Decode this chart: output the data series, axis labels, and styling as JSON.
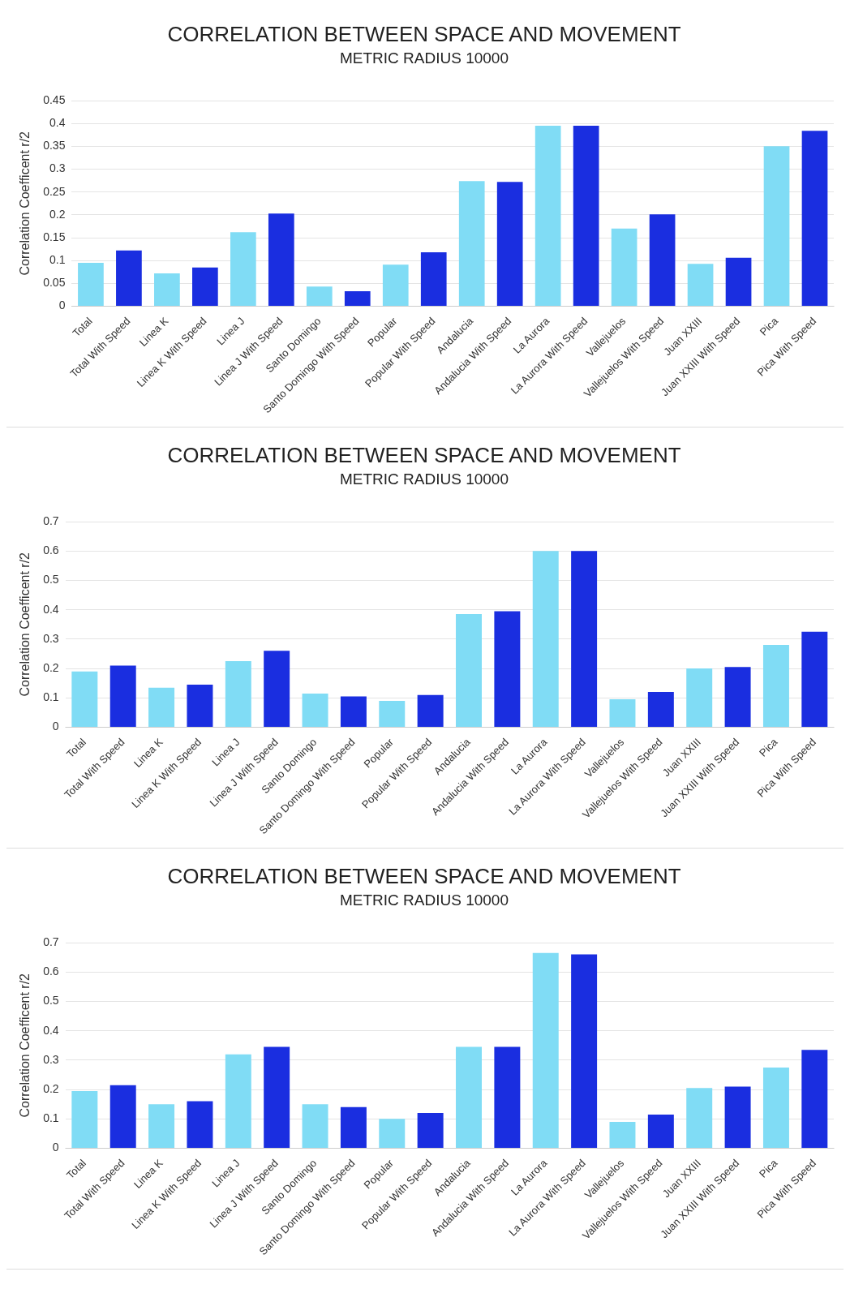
{
  "chart_data": [
    {
      "type": "bar",
      "title": "CORRELATION BETWEEN SPACE AND MOVEMENT",
      "subtitle": "METRIC RADIUS 10000",
      "ylabel": "Correlation Coefficent r/2",
      "categories": [
        "Total",
        "Total With Speed",
        "Linea K",
        "Linea K With Speed",
        "Linea J",
        "Linea J With Speed",
        "Santo Domingo",
        "Santo Domingo With Speed",
        "Popular",
        "Popular With Speed",
        "Andalucia",
        "Andalucia With Speed",
        "La Aurora",
        "La Aurora With Speed",
        "Vallejuelos",
        "Vallejuelos With Speed",
        "Juan XXIII",
        "Juan XXIII With Speed",
        "Pica",
        "Pica With Speed"
      ],
      "values": [
        0.095,
        0.122,
        0.072,
        0.085,
        0.162,
        0.203,
        0.043,
        0.033,
        0.091,
        0.118,
        0.274,
        0.272,
        0.395,
        0.395,
        0.17,
        0.201,
        0.093,
        0.106,
        0.35,
        0.384
      ],
      "colors": [
        "#80dcf5",
        "#1a2ee0",
        "#80dcf5",
        "#1a2ee0",
        "#80dcf5",
        "#1a2ee0",
        "#80dcf5",
        "#1a2ee0",
        "#80dcf5",
        "#1a2ee0",
        "#80dcf5",
        "#1a2ee0",
        "#80dcf5",
        "#1a2ee0",
        "#80dcf5",
        "#1a2ee0",
        "#80dcf5",
        "#1a2ee0",
        "#80dcf5",
        "#1a2ee0"
      ],
      "ylim": [
        0,
        0.45
      ],
      "yticks": [
        0,
        0.05,
        0.1,
        0.15,
        0.2,
        0.25,
        0.3,
        0.35,
        0.4,
        0.45
      ],
      "grid": "y",
      "legend": false
    },
    {
      "type": "bar",
      "title": "CORRELATION BETWEEN SPACE AND MOVEMENT",
      "subtitle": "METRIC RADIUS 10000",
      "ylabel": "Correlation Coefficent r/2",
      "categories": [
        "Total",
        "Total With Speed",
        "Linea K",
        "Linea K With Speed",
        "Linea J",
        "Linea J With Speed",
        "Santo Domingo",
        "Santo Domingo With Speed",
        "Popular",
        "Popular With Speed",
        "Andalucia",
        "Andalucia With Speed",
        "La Aurora",
        "La Aurora With Speed",
        "Vallejuelos",
        "Vallejuelos With Speed",
        "Juan XXIII",
        "Juan XXIII With Speed",
        "Pica",
        "Pica With Speed"
      ],
      "values": [
        0.19,
        0.21,
        0.135,
        0.145,
        0.225,
        0.26,
        0.115,
        0.105,
        0.09,
        0.11,
        0.385,
        0.395,
        0.6,
        0.6,
        0.095,
        0.12,
        0.2,
        0.205,
        0.28,
        0.325
      ],
      "colors": [
        "#80dcf5",
        "#1a2ee0",
        "#80dcf5",
        "#1a2ee0",
        "#80dcf5",
        "#1a2ee0",
        "#80dcf5",
        "#1a2ee0",
        "#80dcf5",
        "#1a2ee0",
        "#80dcf5",
        "#1a2ee0",
        "#80dcf5",
        "#1a2ee0",
        "#80dcf5",
        "#1a2ee0",
        "#80dcf5",
        "#1a2ee0",
        "#80dcf5",
        "#1a2ee0"
      ],
      "ylim": [
        0,
        0.7
      ],
      "yticks": [
        0,
        0.1,
        0.2,
        0.3,
        0.4,
        0.5,
        0.6,
        0.7
      ],
      "grid": "y",
      "legend": false
    },
    {
      "type": "bar",
      "title": "CORRELATION BETWEEN SPACE AND MOVEMENT",
      "subtitle": "METRIC RADIUS 10000",
      "ylabel": "Correlation Coefficent r/2",
      "categories": [
        "Total",
        "Total With Speed",
        "Linea K",
        "Linea K With Speed",
        "Linea J",
        "Linea J With Speed",
        "Santo Domingo",
        "Santo Domingo With Speed",
        "Popular",
        "Popular With Speed",
        "Andalucia",
        "Andalucia With Speed",
        "La Aurora",
        "La Aurora With Speed",
        "Vallejuelos",
        "Vallejuelos With Speed",
        "Juan XXIII",
        "Juan XXIII With Speed",
        "Pica",
        "Pica With Speed"
      ],
      "values": [
        0.195,
        0.215,
        0.15,
        0.16,
        0.32,
        0.345,
        0.15,
        0.14,
        0.1,
        0.12,
        0.345,
        0.345,
        0.665,
        0.66,
        0.09,
        0.115,
        0.205,
        0.21,
        0.275,
        0.335
      ],
      "colors": [
        "#80dcf5",
        "#1a2ee0",
        "#80dcf5",
        "#1a2ee0",
        "#80dcf5",
        "#1a2ee0",
        "#80dcf5",
        "#1a2ee0",
        "#80dcf5",
        "#1a2ee0",
        "#80dcf5",
        "#1a2ee0",
        "#80dcf5",
        "#1a2ee0",
        "#80dcf5",
        "#1a2ee0",
        "#80dcf5",
        "#1a2ee0",
        "#80dcf5",
        "#1a2ee0"
      ],
      "ylim": [
        0,
        0.7
      ],
      "yticks": [
        0,
        0.1,
        0.2,
        0.3,
        0.4,
        0.5,
        0.6,
        0.7
      ],
      "grid": "y",
      "legend": false
    }
  ]
}
